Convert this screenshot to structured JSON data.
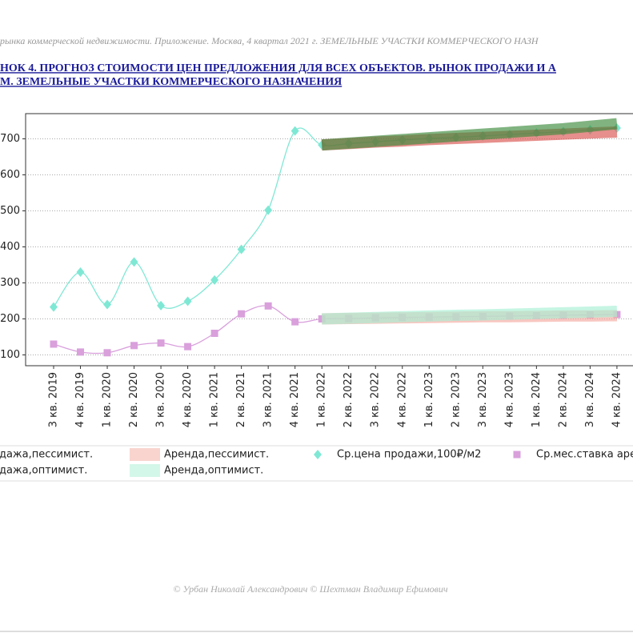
{
  "header": "рынка коммерческой недвижимости. Приложение. Москва, 4 квартал 2021 г. ЗЕМЕЛЬНЫЕ УЧАСТКИ КОММЕРЧЕСКОГО НАЗН",
  "title_lines": [
    "НОК 4. ПРОГНОЗ СТОИМОСТИ ЦЕН ПРЕДЛОЖЕНИЯ ДЛЯ ВСЕХ ОБЪЕКТОВ. РЫНОК ПРОДАЖИ И А",
    "М. ЗЕМЕЛЬНЫЕ УЧАСТКИ КОММЕРЧЕСКОГО НАЗНАЧЕНИЯ"
  ],
  "footer": "© Урбан Николай Александрович   © Шехтман Владимир Ефимович",
  "chart_data": {
    "type": "line",
    "categories": [
      "3 кв. 2019",
      "4 кв. 2019",
      "1 кв. 2020",
      "2 кв. 2020",
      "3 кв. 2020",
      "4 кв. 2020",
      "1 кв. 2021",
      "2 кв. 2021",
      "3 кв. 2021",
      "4 кв. 2021",
      "1 кв. 2022",
      "2 кв. 2022",
      "3 кв. 2022",
      "4 кв. 2022",
      "1 кв. 2023",
      "2 кв. 2023",
      "3 кв. 2023",
      "4 кв. 2023",
      "1 кв. 2024",
      "2 кв. 2024",
      "3 кв. 2024",
      "4 кв. 2024"
    ],
    "series": [
      {
        "name": "Продажа,пессимист.",
        "color": "#d9534f",
        "style": "band",
        "values": [
          null,
          null,
          null,
          null,
          null,
          null,
          null,
          null,
          null,
          null,
          683,
          687,
          691,
          694,
          698,
          701,
          704,
          707,
          710,
          713,
          716,
          719
        ]
      },
      {
        "name": "Аренда,пессимист.",
        "color": "#f4a99f",
        "style": "band",
        "values": [
          null,
          null,
          null,
          null,
          null,
          null,
          null,
          null,
          null,
          null,
          200,
          201,
          202,
          203,
          204,
          205,
          206,
          206,
          207,
          208,
          208,
          209
        ]
      },
      {
        "name": "Ср.цена продажи,100₽/м2",
        "color": "#7fe8d4",
        "style": "smooth",
        "marker": "diamond",
        "values": [
          233,
          330,
          240,
          358,
          237,
          249,
          308,
          393,
          502,
          722,
          683,
          687,
          692,
          697,
          701,
          704,
          708,
          712,
          716,
          720,
          725,
          730
        ]
      },
      {
        "name": "Ср.мес.ставка арен",
        "color": "#d9a0dc",
        "style": "smooth",
        "marker": "square",
        "values": [
          130,
          108,
          106,
          126,
          133,
          123,
          160,
          214,
          236,
          192,
          200,
          201,
          203,
          204,
          205,
          206,
          207,
          208,
          209,
          210,
          211,
          212
        ]
      },
      {
        "name": "Продажа,оптимист.",
        "color": "#3c8a3c",
        "style": "band",
        "values": [
          null,
          null,
          null,
          null,
          null,
          null,
          null,
          null,
          null,
          null,
          683,
          688,
          693,
          698,
          703,
          708,
          713,
          718,
          723,
          728,
          735,
          742
        ]
      },
      {
        "name": "Аренда,оптимист.",
        "color": "#a8f0d4",
        "style": "band",
        "values": [
          null,
          null,
          null,
          null,
          null,
          null,
          null,
          null,
          null,
          null,
          200,
          202,
          204,
          206,
          208,
          210,
          211,
          213,
          215,
          217,
          219,
          221
        ]
      }
    ],
    "ylim": [
      70,
      770
    ],
    "yticks": [
      100,
      200,
      300,
      400,
      500,
      600,
      700
    ],
    "grid": true,
    "legend": "bottom"
  }
}
